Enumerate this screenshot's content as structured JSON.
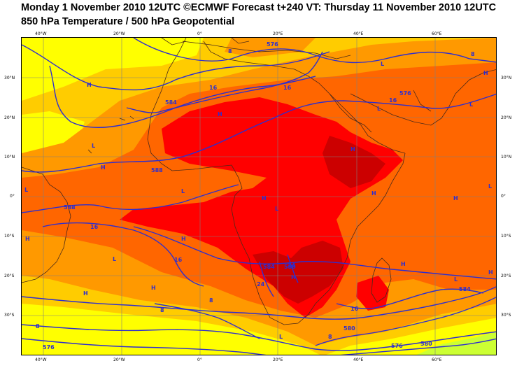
{
  "title_line1": "Monday 1 November 2010 12UTC ©ECMWF Forecast t+240 VT: Thursday 11 November 2010 12UTC",
  "title_line2": "850 hPa Temperature / 500 hPa Geopotential",
  "lon_labels": [
    "40°W",
    "20°W",
    "0°",
    "20°E",
    "40°E",
    "60°E"
  ],
  "lat_labels": [
    "30°N",
    "20°N",
    "10°N",
    "0°",
    "10°S",
    "20°S",
    "30°S"
  ],
  "pressure_letters": [
    "H",
    "H",
    "H",
    "H",
    "H",
    "H",
    "H",
    "H",
    "H",
    "H",
    "H",
    "H",
    "H",
    "H",
    "H",
    "L",
    "L",
    "L",
    "L",
    "L",
    "L",
    "L",
    "L",
    "L",
    "L",
    "L"
  ],
  "contour_labels": [
    "16",
    "16",
    "16",
    "16",
    "16",
    "16",
    "24",
    "24",
    "8",
    "8",
    "8",
    "8",
    "8",
    "8",
    "576",
    "576",
    "576",
    "576",
    "580",
    "580",
    "580",
    "584",
    "584",
    "584",
    "588",
    "588"
  ],
  "colors": {
    "yellow": "#ffff00",
    "light_orange": "#ffcc00",
    "orange": "#ff9900",
    "dark_orange": "#ff6600",
    "red": "#ff0000",
    "dark_red": "#cc0000",
    "contour": "#2e2ecf",
    "coast": "#4a2a1a",
    "grid": "#808080"
  }
}
